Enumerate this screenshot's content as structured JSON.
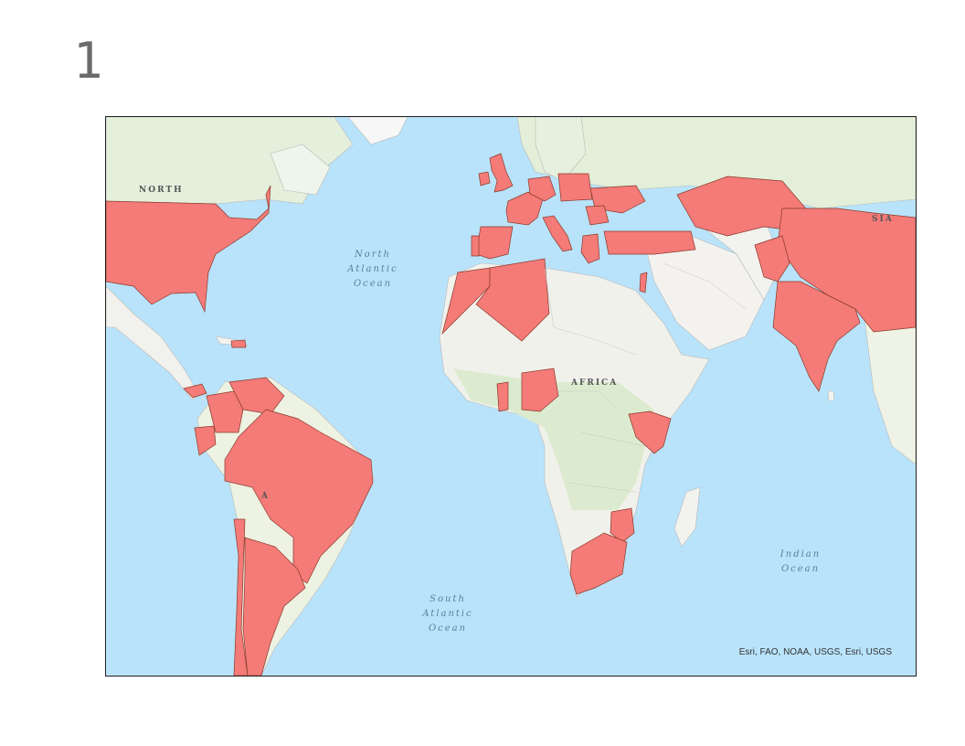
{
  "page": {
    "number": "1"
  },
  "map": {
    "basemap": "ocean-topographic",
    "highlight_color": "#f47b78",
    "land_color": "#f3f3f1",
    "vegetation_color": "#dcebcf",
    "water_color": "#bfe6fb",
    "labels": {
      "north_atlantic": [
        "North",
        "Atlantic",
        "Ocean"
      ],
      "south_atlantic": [
        "South",
        "Atlantic",
        "Ocean"
      ],
      "indian": [
        "Indian",
        "Ocean"
      ],
      "africa": "AFRICA",
      "north": "NORTH",
      "asia_fragment": "SIA",
      "south_america_fragment": "A"
    },
    "attribution": "Esri, FAO, NOAA, USGS, Esri, USGS",
    "highlighted_countries": [
      "United States",
      "Spain",
      "Portugal",
      "France",
      "United Kingdom",
      "Ireland",
      "Germany",
      "Poland",
      "Ukraine",
      "Italy",
      "Greece",
      "Turkey",
      "Romania",
      "Morocco",
      "Algeria",
      "Nigeria",
      "Ghana",
      "Kenya",
      "South Africa",
      "Mozambique",
      "Brazil",
      "Argentina",
      "Chile",
      "Venezuela",
      "Colombia",
      "Ecuador",
      "Panama",
      "Dominican Republic",
      "Israel",
      "India",
      "China",
      "Kazakhstan",
      "Pakistan"
    ]
  }
}
